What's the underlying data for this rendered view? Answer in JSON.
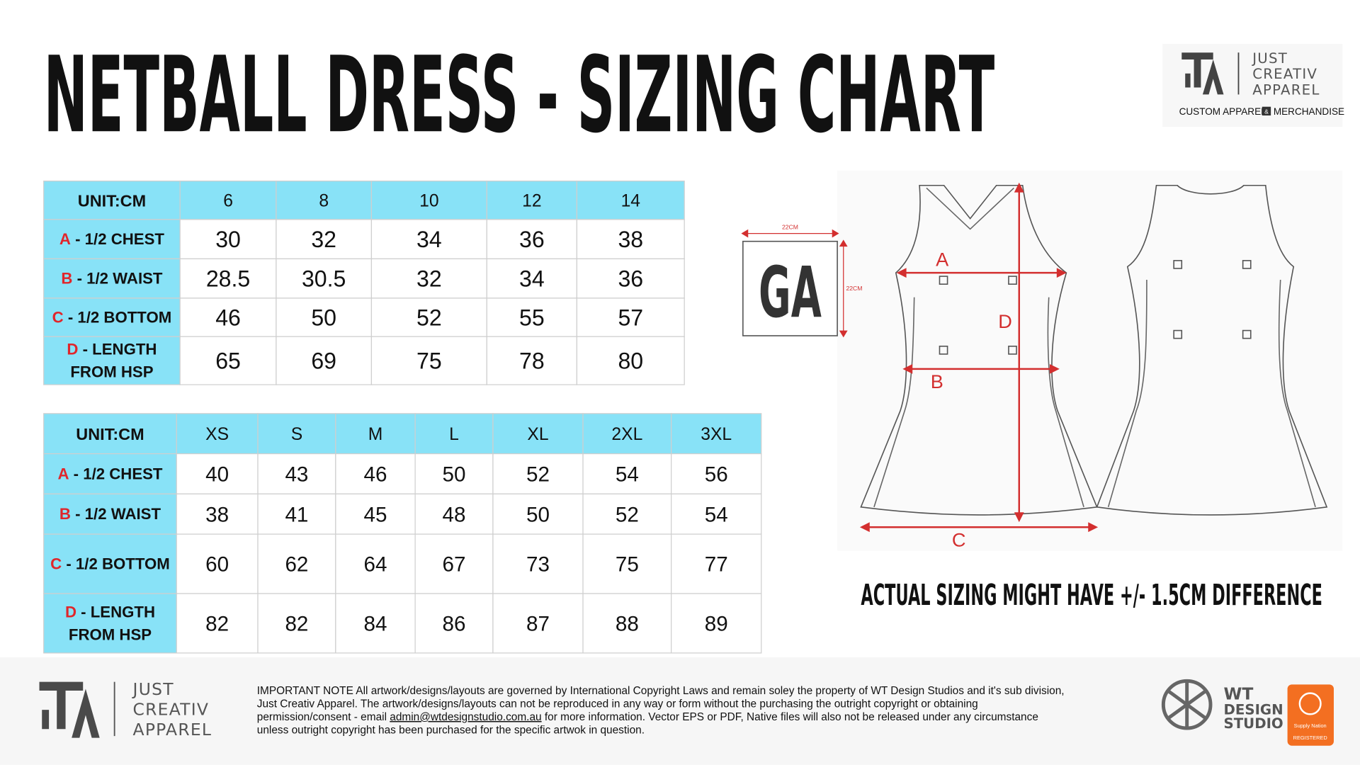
{
  "header": {
    "title": "NETBALL DRESS - SIZING CHART",
    "logo": {
      "lines": [
        "JUST",
        "CREATIV",
        "APPAREL"
      ],
      "tagline_left": "CUSTOM APPAREL",
      "tagline_mid": "&",
      "tagline_right": "MERCHANDISE"
    }
  },
  "table_1": {
    "header": [
      "UNIT:CM",
      6,
      8,
      10,
      12,
      14
    ],
    "rows": [
      {
        "letter": "A",
        "label": [
          " - 1/2 CHEST"
        ],
        "values": [
          30,
          32,
          34,
          36,
          38
        ]
      },
      {
        "letter": "B",
        "label": [
          " - 1/2 WAIST"
        ],
        "values": [
          28.5,
          30.5,
          32,
          34,
          36
        ]
      },
      {
        "letter": "C",
        "label": [
          " - 1/2 BOTTOM"
        ],
        "values": [
          46,
          50,
          52,
          55,
          57
        ]
      },
      {
        "letter": "D",
        "label": [
          " - LENGTH",
          "FROM HSP"
        ],
        "values": [
          65,
          69,
          75,
          78,
          80
        ]
      }
    ]
  },
  "table_2": {
    "header": [
      "UNIT:CM",
      "XS",
      "S",
      "M",
      "L",
      "XL",
      "2XL",
      "3XL"
    ],
    "rows": [
      {
        "letter": "A",
        "label": [
          " - 1/2 CHEST"
        ],
        "values": [
          40,
          43,
          46,
          50,
          52,
          54,
          56
        ]
      },
      {
        "letter": "B",
        "label": [
          " - 1/2 WAIST"
        ],
        "values": [
          38,
          41,
          45,
          48,
          50,
          52,
          54
        ]
      },
      {
        "letter": "C",
        "label": [
          " - 1/2 BOTTOM"
        ],
        "values": [
          60,
          62,
          64,
          67,
          73,
          75,
          77
        ]
      },
      {
        "letter": "D",
        "label": [
          " - LENGTH",
          "FROM HSP"
        ],
        "values": [
          82,
          82,
          84,
          86,
          87,
          88,
          89
        ]
      }
    ]
  },
  "diagram": {
    "badge_text": "GA",
    "badge_width": "22CM",
    "badge_height": "22CM",
    "label_a": "A",
    "label_b": "B",
    "label_c": "C",
    "label_d": "D"
  },
  "note": "ACTUAL SIZING MIGHT HAVE +/- 1.5CM DIFFERENCE",
  "footer": {
    "logo_lines": [
      "JUST",
      "CREATIV",
      "APPAREL"
    ],
    "notice": [
      "IMPORTANT NOTE All artwork/designs/layouts are governed by International Copyright Laws and remain soley the property of WT Design Studios and it's sub division,",
      "Just Creativ Apparel. The artwork/designs/layouts can not be reproduced in any way or form without the purchasing the outright copyright or obtaining"
    ],
    "notice_email_before": "permission/consent - email ",
    "email": "admin@wtdesignstudio.com.au",
    "notice_email_after": " for more information. Vector EPS or PDF, Native files will also not be released under any circumstance",
    "notice_last": "unless outright copyright has been purchased for the specific artwok in question.",
    "studio_lines": [
      "WT",
      "DESIGN",
      "STUDIO"
    ],
    "badge_lines": [
      "Supply Nation",
      "REGISTERED"
    ]
  }
}
